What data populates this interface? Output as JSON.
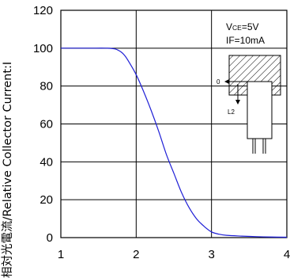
{
  "chart_data": {
    "type": "line",
    "title": "",
    "xlabel": "",
    "ylabel": "相対光電流/Relative Collector Current:I",
    "xlim": [
      1,
      4
    ],
    "ylim": [
      0,
      120
    ],
    "x_ticks": [
      "1",
      "2",
      "3",
      "4"
    ],
    "y_ticks": [
      "0",
      "20",
      "40",
      "60",
      "80",
      "100",
      "120"
    ],
    "grid": true,
    "series": [
      {
        "color": "#1f1fd6",
        "x": [
          1.0,
          1.2,
          1.4,
          1.6,
          1.72,
          1.8,
          1.85,
          1.9,
          2.0,
          2.1,
          2.2,
          2.3,
          2.4,
          2.5,
          2.6,
          2.7,
          2.8,
          2.9,
          3.0,
          3.1,
          3.2,
          3.4,
          3.6,
          3.8,
          4.0
        ],
        "y": [
          100,
          100,
          100,
          100,
          99.6,
          98,
          96,
          93,
          86,
          77,
          67,
          56,
          44,
          34,
          24,
          16,
          10,
          6,
          3,
          1.8,
          1.2,
          0.8,
          0.5,
          0.3,
          0.2
        ]
      }
    ],
    "annotations": [
      "Vce=5V",
      "IF=10mA"
    ],
    "inset_labels": [
      "0",
      "L2"
    ]
  }
}
